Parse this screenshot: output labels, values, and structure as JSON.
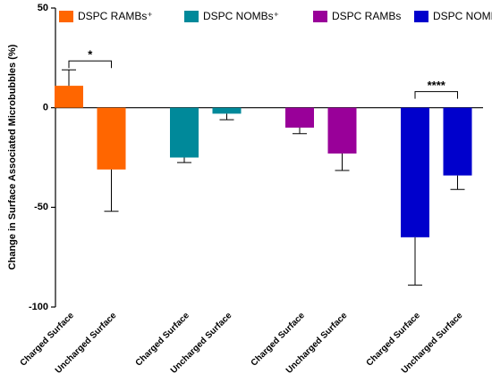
{
  "chart_data": {
    "type": "bar",
    "y_label": "Change in Surface Associated Microbubbles (%)",
    "categories": [
      "Charged Surface",
      "Uncharged Surface"
    ],
    "series": [
      {
        "name": "DSPC RAMBs⁺",
        "color": "#ff6600",
        "values": [
          11,
          -31
        ],
        "errors": [
          8,
          21
        ]
      },
      {
        "name": "DSPC NOMBs⁺",
        "color": "#00899a",
        "values": [
          -25,
          -3
        ],
        "errors": [
          2.5,
          3
        ]
      },
      {
        "name": "DSPC RAMBs",
        "color": "#990099",
        "values": [
          -10,
          -23
        ],
        "errors": [
          3,
          8.5
        ]
      },
      {
        "name": "DSPC NOMBs",
        "color": "#0000cc",
        "values": [
          -65,
          -34
        ],
        "errors": [
          24,
          7
        ]
      }
    ],
    "annotations": [
      {
        "text": "*",
        "series": 0
      },
      {
        "text": "****",
        "series": 3
      }
    ],
    "ylim": [
      -100,
      50
    ],
    "yticks": [
      -100,
      -50,
      0,
      50
    ]
  }
}
